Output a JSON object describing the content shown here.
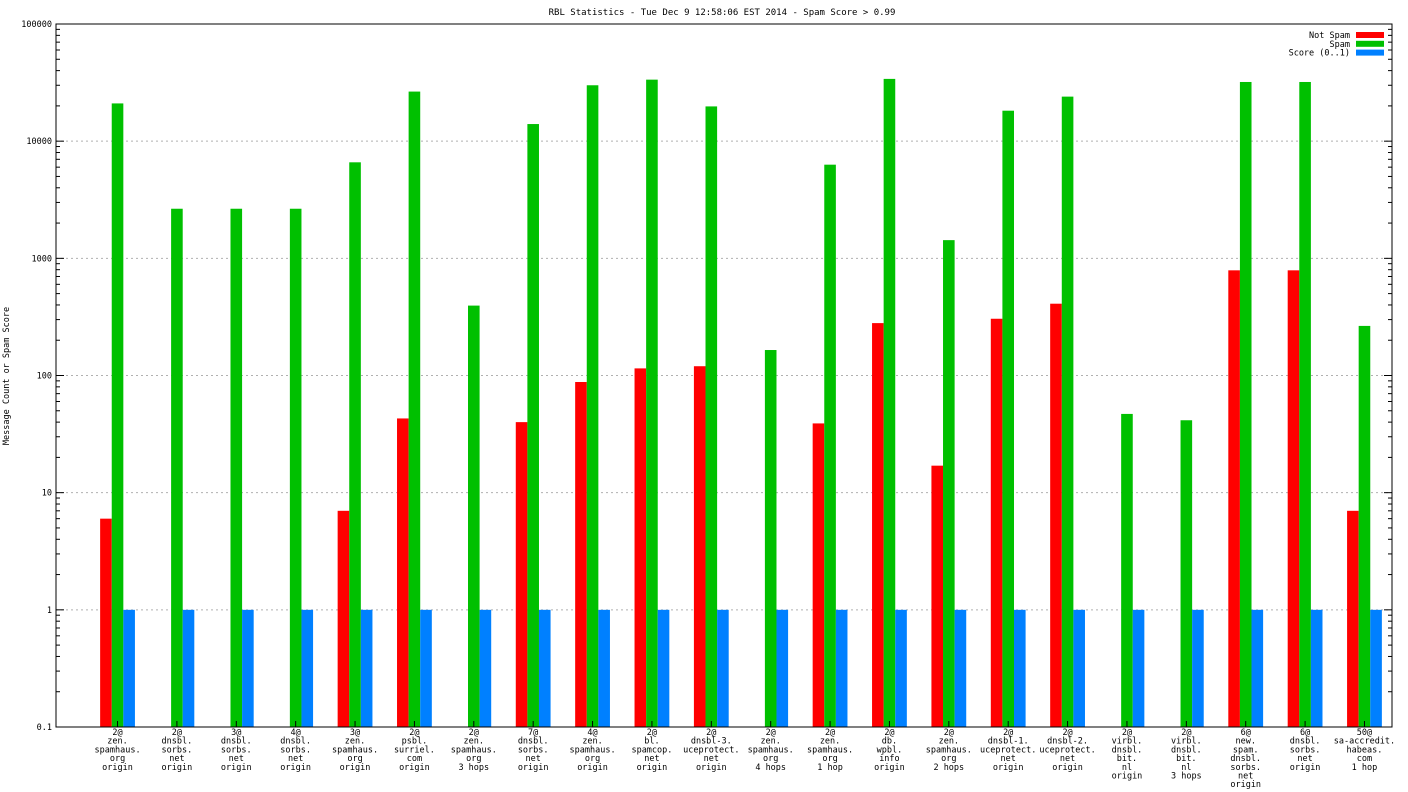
{
  "chart_data": {
    "type": "bar",
    "title": "RBL Statistics - Tue Dec  9 12:58:06 EST 2014 - Spam Score > 0.99",
    "xlabel": "",
    "ylabel": "Message Count or Spam Score",
    "yscale": "log",
    "ylim": [
      0.1,
      100000
    ],
    "yticks": [
      "0.1",
      "1",
      "10",
      "100",
      "1000",
      "10000",
      "100000"
    ],
    "grid": true,
    "legend_position": "top-right",
    "categories": [
      [
        "2@",
        "zen.",
        "spamhaus.",
        "org",
        "origin"
      ],
      [
        "2@",
        "dnsbl.",
        "sorbs.",
        "net",
        "origin"
      ],
      [
        "3@",
        "dnsbl.",
        "sorbs.",
        "net",
        "origin"
      ],
      [
        "4@",
        "dnsbl.",
        "sorbs.",
        "net",
        "origin"
      ],
      [
        "3@",
        "zen.",
        "spamhaus.",
        "org",
        "origin"
      ],
      [
        "2@",
        "psbl.",
        "surriel.",
        "com",
        "origin"
      ],
      [
        "2@",
        "zen.",
        "spamhaus.",
        "org",
        "3 hops"
      ],
      [
        "7@",
        "dnsbl.",
        "sorbs.",
        "net",
        "origin"
      ],
      [
        "4@",
        "zen.",
        "spamhaus.",
        "org",
        "origin"
      ],
      [
        "2@",
        "bl.",
        "spamcop.",
        "net",
        "origin"
      ],
      [
        "2@",
        "dnsbl-3.",
        "uceprotect.",
        "net",
        "origin"
      ],
      [
        "2@",
        "zen.",
        "spamhaus.",
        "org",
        "4 hops"
      ],
      [
        "2@",
        "zen.",
        "spamhaus.",
        "org",
        "1 hop"
      ],
      [
        "2@",
        "db.",
        "wpbl.",
        "info",
        "origin"
      ],
      [
        "2@",
        "zen.",
        "spamhaus.",
        "org",
        "2 hops"
      ],
      [
        "2@",
        "dnsbl-1.",
        "uceprotect.",
        "net",
        "origin"
      ],
      [
        "2@",
        "dnsbl-2.",
        "uceprotect.",
        "net",
        "origin"
      ],
      [
        "2@",
        "virbl.",
        "dnsbl.",
        "bit.",
        "nl",
        "origin"
      ],
      [
        "2@",
        "virbl.",
        "dnsbl.",
        "bit.",
        "nl",
        "3 hops"
      ],
      [
        "6@",
        "new.",
        "spam.",
        "dnsbl.",
        "sorbs.",
        "net",
        "origin"
      ],
      [
        "6@",
        "dnsbl.",
        "sorbs.",
        "net",
        "origin"
      ],
      [
        "50@",
        "sa-accredit.",
        "habeas.",
        "com",
        "1 hop"
      ]
    ],
    "series": [
      {
        "name": "Not Spam",
        "color": "#ff0000",
        "values": [
          6,
          null,
          null,
          null,
          7,
          43,
          null,
          40,
          88,
          115,
          120,
          null,
          39,
          280,
          17,
          305,
          410,
          null,
          null,
          790,
          790,
          7
        ]
      },
      {
        "name": "Spam",
        "color": "#00c000",
        "values": [
          21000,
          2650,
          2650,
          2650,
          6600,
          26500,
          395,
          14000,
          30000,
          33500,
          19800,
          165,
          6300,
          34000,
          1430,
          18200,
          24000,
          47,
          41.5,
          32000,
          32000,
          265
        ]
      },
      {
        "name": "Score (0..1)",
        "color": "#0080ff",
        "values": [
          1,
          1,
          1,
          1,
          1,
          1,
          1,
          1,
          1,
          1,
          1,
          1,
          1,
          1,
          1,
          1,
          1,
          1,
          1,
          1,
          1,
          1
        ]
      }
    ]
  }
}
